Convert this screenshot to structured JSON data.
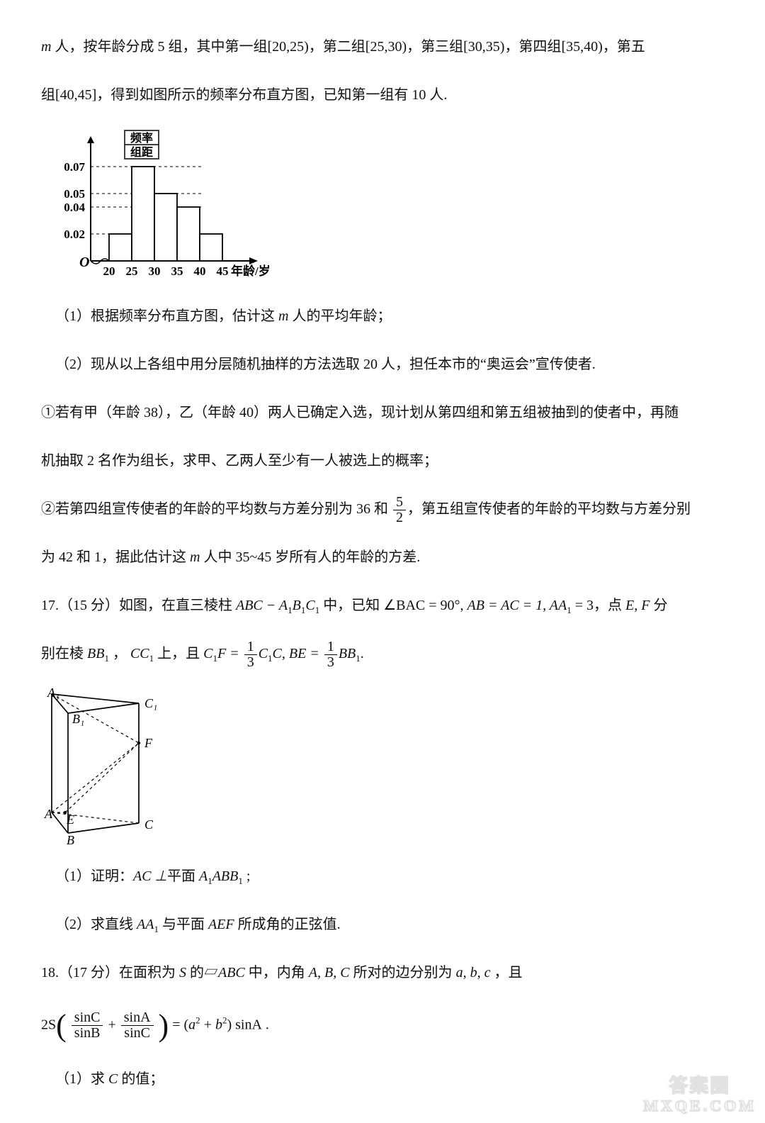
{
  "paragraphs": {
    "p1a": "m",
    "p1b": " 人，按年龄分成 5 组，其中第一组",
    "p1_g1": "[20,25)",
    "p1c": "，第二组",
    "p1_g2": "[25,30)",
    "p1d": "，第三组",
    "p1_g3": "[30,35)",
    "p1e": "，第四组",
    "p1_g4": "[35,40)",
    "p1f": "，第五",
    "p2a": "组",
    "p2_g5": "[40,45]",
    "p2b": "，得到如图所示的频率分布直方图，已知第一组有 10 人.",
    "q1": "（1）根据频率分布直方图，估计这 ",
    "q1m": "m",
    "q1b": " 人的平均年龄；",
    "q2": "（2）现从以上各组中用分层随机抽样的方法选取 20 人，担任本市的“奥运会”宣传使者.",
    "q3": "①若有甲（年龄 38），乙（年龄 40）两人已确定入选，现计划从第四组和第五组被抽到的使者中，再随",
    "q3b": "机抽取 2 名作为组长，求甲、乙两人至少有一人被选上的概率；",
    "q4a": "②若第四组宣传使者的年龄的平均数与方差分别为 36 和",
    "q4_frac": {
      "n": "5",
      "d": "2"
    },
    "q4b": "，第五组宣传使者的年龄的平均数与方差分别",
    "q4c": "为 42 和 1，据此估计这 ",
    "q4m": "m",
    "q4d": " 人中 35~45 岁所有人的年龄的方差.",
    "p17a": "17.（15 分）如图，在直三棱柱 ",
    "p17m1": "ABC − A",
    "p17s1": "1",
    "p17m2": "B",
    "p17s2": "1",
    "p17m3": "C",
    "p17s3": "1",
    "p17b": " 中，已知",
    "p17m4": "∠BAC = 90°",
    "p17c": ", ",
    "p17m5": "AB = AC = 1, AA",
    "p17s4": "1",
    "p17m6": " = 3",
    "p17d": "，点 ",
    "p17m7": "E, F",
    "p17e": " 分",
    "p17line2a": "别在棱 ",
    "p17m8": "BB",
    "p17s5": "1",
    "p17line2b": " ， ",
    "p17m9": "CC",
    "p17s6": "1",
    "p17line2c": " 上，且 ",
    "p17m10a": "C",
    "p17s7": "1",
    "p17m10b": "F = ",
    "p17frac1": {
      "n": "1",
      "d": "3"
    },
    "p17m10c": "C",
    "p17s8": "1",
    "p17m10d": "C, BE = ",
    "p17frac2": {
      "n": "1",
      "d": "3"
    },
    "p17m10e": "BB",
    "p17s9": "1",
    "p17dot": ".",
    "p17q1a": "（1）证明：",
    "p17q1m": "AC ⊥",
    "p17q1b": "平面 ",
    "p17q1m2a": "A",
    "p17q1s1": "1",
    "p17q1m2b": "ABB",
    "p17q1s2": "1",
    "p17q1c": " ;",
    "p17q2a": "（2）求直线 ",
    "p17q2m1a": "AA",
    "p17q2s1": "1",
    "p17q2b": " 与平面 ",
    "p17q2m2": "AEF",
    "p17q2c": " 所成角的正弦值.",
    "p18a": "18.（17 分）在面积为 ",
    "p18m1": "S",
    "p18b": " 的",
    "p18tri": "▱",
    "p18m2": "ABC",
    "p18c": " 中，内角 ",
    "p18m3": "A, B, C",
    "p18d": " 所对的边分别为 ",
    "p18m4": "a, b, c",
    "p18e": " ，且",
    "p18eq_2S": "2S",
    "p18eq_f1": {
      "n": "sinC",
      "d": "sinB"
    },
    "p18eq_plus": " + ",
    "p18eq_f2": {
      "n": "sinA",
      "d": "sinC"
    },
    "p18eq_eq": " = ",
    "p18eq_rhsA": "a",
    "p18eq_rhsB": "b",
    "p18eq_rhs2": "sinA",
    "p18eq_dot": " .",
    "p18q1": "（1）求 ",
    "p18q1m": "C",
    "p18q1b": " 的值；"
  },
  "histogram": {
    "x_ticks": [
      "20",
      "25",
      "30",
      "35",
      "40",
      "45"
    ],
    "y_ticks": [
      {
        "label": "0.02",
        "v": 0.02
      },
      {
        "label": "0.04",
        "v": 0.04
      },
      {
        "label": "0.05",
        "v": 0.05
      },
      {
        "label": "0.07",
        "v": 0.07
      }
    ],
    "bars": [
      0.02,
      0.07,
      0.05,
      0.04,
      0.02
    ],
    "ylabel_top": "频率",
    "ylabel_bot": "组距",
    "xlabel": "年龄/岁",
    "ymax": 0.08,
    "colors": {
      "axis": "#000000",
      "bar_fill": "#ffffff",
      "bar_stroke": "#000000",
      "dashed": "#000000",
      "text": "#000000"
    },
    "font_size": 18
  },
  "prism": {
    "A": [
      15,
      180
    ],
    "B": [
      38,
      209
    ],
    "C": [
      138,
      195
    ],
    "A1": [
      15,
      13
    ],
    "B1": [
      38,
      40
    ],
    "C1": [
      138,
      26
    ],
    "E": [
      34,
      180
    ],
    "F": [
      138,
      82
    ],
    "labels": {
      "A": "A",
      "B": "B",
      "C": "C",
      "A1": "A₁",
      "B1": "B₁",
      "C1": "C₁",
      "E": "E",
      "F": "F"
    },
    "stroke": "#000000",
    "font_size": 18
  },
  "watermark": {
    "line1": "答案圈",
    "line2": "MXQE.COM"
  }
}
